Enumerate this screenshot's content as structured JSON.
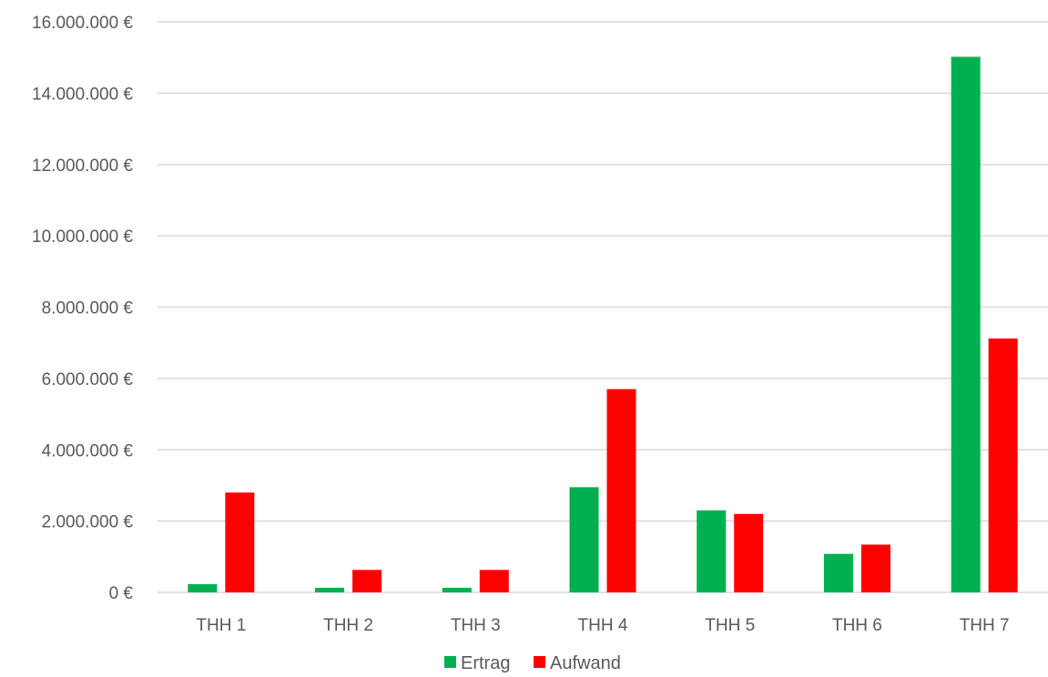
{
  "chart_data": {
    "type": "bar",
    "title": "",
    "xlabel": "",
    "ylabel": "",
    "categories": [
      "THH 1",
      "THH 2",
      "THH 3",
      "THH 4",
      "THH 5",
      "THH 6",
      "THH 7"
    ],
    "series": [
      {
        "name": "Ertrag",
        "color": "#00b050",
        "values": [
          230000,
          130000,
          130000,
          2950000,
          2300000,
          1080000,
          15020000
        ]
      },
      {
        "name": "Aufwand",
        "color": "#ff0000",
        "values": [
          2800000,
          630000,
          630000,
          5700000,
          2200000,
          1340000,
          7120000
        ]
      }
    ],
    "ylim": [
      0,
      16000000
    ],
    "yticks": [
      0,
      2000000,
      4000000,
      6000000,
      8000000,
      10000000,
      12000000,
      14000000,
      16000000
    ],
    "ytick_labels": [
      "0 €",
      "2.000.000 €",
      "4.000.000 €",
      "6.000.000 €",
      "8.000.000 €",
      "10.000.000 €",
      "12.000.000 €",
      "14.000.000 €",
      "16.000.000 €"
    ],
    "grid": true,
    "gridline_color": "#d9d9d9",
    "legend": "bottom"
  }
}
